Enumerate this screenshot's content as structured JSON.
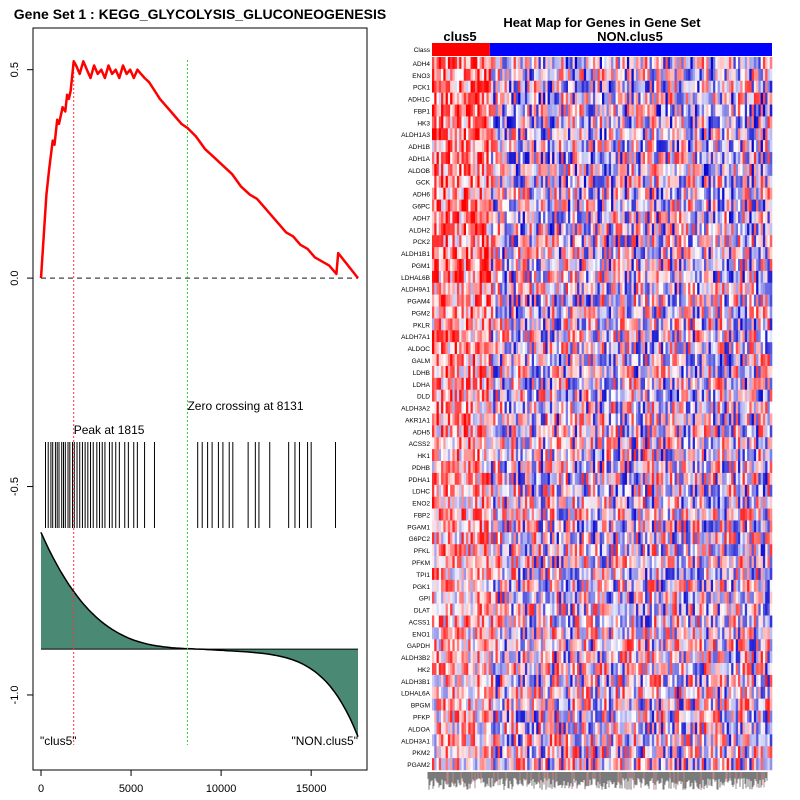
{
  "chart_data": [
    {
      "type": "line",
      "title": "Gene Set  1 : KEGG_GLYCOLYSIS_GLUCONEOGENESIS",
      "xlim": [
        0,
        17600
      ],
      "ylim": [
        -1.18,
        0.6
      ],
      "x_ticks": [
        0,
        5000,
        10000,
        15000
      ],
      "x_tick_labels": [
        "0",
        "5000",
        "10000",
        "15000"
      ],
      "y_ticks": [
        0.5,
        0.0,
        -0.5,
        -1.0
      ],
      "y_tick_labels": [
        "0.5",
        "0.0",
        "-0.5",
        "-1.0"
      ],
      "grid": false,
      "series": [
        {
          "color": "#ff0000",
          "x": [
            0,
            300,
            450,
            650,
            750,
            900,
            1000,
            1200,
            1350,
            1450,
            1550,
            1650,
            1815,
            1950,
            2150,
            2350,
            2550,
            2750,
            2950,
            3150,
            3350,
            3550,
            3750,
            3950,
            4150,
            4350,
            4550,
            4750,
            4950,
            5150,
            5350,
            5550,
            5750,
            6000,
            6300,
            6600,
            7000,
            7400,
            7800,
            8131,
            8600,
            9100,
            9600,
            10100,
            10600,
            11100,
            11600,
            12000,
            12400,
            12800,
            13200,
            13600,
            14000,
            14400,
            14800,
            15200,
            15600,
            16000,
            16400,
            16500,
            17600
          ],
          "y": [
            0.0,
            0.2,
            0.26,
            0.33,
            0.32,
            0.38,
            0.37,
            0.41,
            0.4,
            0.44,
            0.43,
            0.45,
            0.52,
            0.51,
            0.49,
            0.52,
            0.5,
            0.48,
            0.51,
            0.49,
            0.5,
            0.48,
            0.51,
            0.49,
            0.5,
            0.48,
            0.51,
            0.49,
            0.5,
            0.48,
            0.5,
            0.49,
            0.48,
            0.47,
            0.45,
            0.43,
            0.41,
            0.39,
            0.37,
            0.36,
            0.34,
            0.31,
            0.29,
            0.27,
            0.25,
            0.22,
            0.2,
            0.19,
            0.17,
            0.15,
            0.13,
            0.11,
            0.1,
            0.08,
            0.07,
            0.05,
            0.04,
            0.03,
            0.01,
            0.06,
            0.0
          ]
        }
      ],
      "baseline_y": 0.0,
      "peak": {
        "x": 1815,
        "label": "Peak at 1815"
      },
      "zero_crossing": {
        "x": 8131,
        "label": "Zero crossing at 8131"
      },
      "hit_positions": [
        250,
        400,
        550,
        650,
        800,
        900,
        1000,
        1150,
        1250,
        1350,
        1500,
        1600,
        1750,
        1850,
        2000,
        2150,
        2300,
        2450,
        2600,
        2750,
        2900,
        3100,
        3250,
        3400,
        3550,
        3800,
        3950,
        4150,
        4350,
        4650,
        4850,
        5150,
        5350,
        5750,
        6300,
        8700,
        8950,
        9250,
        9500,
        9850,
        10100,
        10450,
        10650,
        11500,
        11900,
        12100,
        12700,
        13750,
        14100,
        14350,
        14800,
        15000,
        16350
      ],
      "rank_metric": {
        "fill_color": "#4a8a75",
        "zero_y": -0.89,
        "max_y": -0.61,
        "min_y": -1.1
      },
      "class_labels": {
        "left": "\"clus5\"",
        "right": "\"NON.clus5\""
      }
    },
    {
      "type": "heatmap",
      "title": "Heat Map for Genes in Gene Set",
      "class_label_row": "Class",
      "group_labels": [
        "clus5",
        "NON.clus5"
      ],
      "group_colors": [
        "#ff0000",
        "#0000ff"
      ],
      "group_split_fraction": 0.17,
      "color_scale": [
        "#0000cc",
        "#ffffff",
        "#ff0000"
      ],
      "genes": [
        "ADH4",
        "ENO3",
        "PCK1",
        "ADH1C",
        "FBP1",
        "HK3",
        "ALDH1A3",
        "ADH1B",
        "ADH1A",
        "ALDOB",
        "GCK",
        "ADH6",
        "G6PC",
        "ADH7",
        "ALDH2",
        "PCK2",
        "ALDH1B1",
        "PGM1",
        "LDHAL6B",
        "ALDH9A1",
        "PGAM4",
        "PGM2",
        "PKLR",
        "ALDH7A1",
        "ALDOC",
        "GALM",
        "LDHB",
        "LDHA",
        "DLD",
        "ALDH3A2",
        "AKR1A1",
        "ADH5",
        "ACSS2",
        "HK1",
        "PDHB",
        "PDHA1",
        "LDHC",
        "ENO2",
        "FBP2",
        "PGAM1",
        "G6PC2",
        "PFKL",
        "PFKM",
        "TPI1",
        "PGK1",
        "GPI",
        "DLAT",
        "ACSS1",
        "ENO1",
        "GAPDH",
        "ALDH3B2",
        "HK2",
        "ALDH3B1",
        "LDHAL6A",
        "BPGM",
        "PFKP",
        "ALDOA",
        "ALDH3A1",
        "PKM2",
        "PGAM2"
      ]
    }
  ]
}
